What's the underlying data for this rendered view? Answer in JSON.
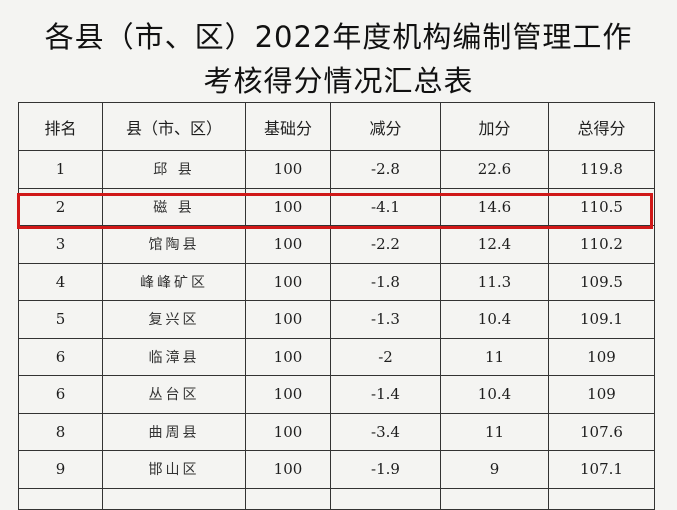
{
  "title_line1": "各县（市、区）2022年度机构编制管理工作",
  "title_line2": "考核得分情况汇总表",
  "headers": [
    "排名",
    "县（市、区）",
    "基础分",
    "减分",
    "加分",
    "总得分"
  ],
  "rows": [
    [
      "1",
      "邱 县",
      "100",
      "-2.8",
      "22.6",
      "119.8"
    ],
    [
      "2",
      "磁 县",
      "100",
      "-4.1",
      "14.6",
      "110.5"
    ],
    [
      "3",
      "馆陶县",
      "100",
      "-2.2",
      "12.4",
      "110.2"
    ],
    [
      "4",
      "峰峰矿区",
      "100",
      "-1.8",
      "11.3",
      "109.5"
    ],
    [
      "5",
      "复兴区",
      "100",
      "-1.3",
      "10.4",
      "109.1"
    ],
    [
      "6",
      "临漳县",
      "100",
      "-2",
      "11",
      "109"
    ],
    [
      "6",
      "丛台区",
      "100",
      "-1.4",
      "10.4",
      "109"
    ],
    [
      "8",
      "曲周县",
      "100",
      "-3.4",
      "11",
      "107.6"
    ],
    [
      "9",
      "邯山区",
      "100",
      "-1.9",
      "9",
      "107.1"
    ]
  ],
  "highlight_color": "#d01818",
  "highlighted_row_rank": "2"
}
